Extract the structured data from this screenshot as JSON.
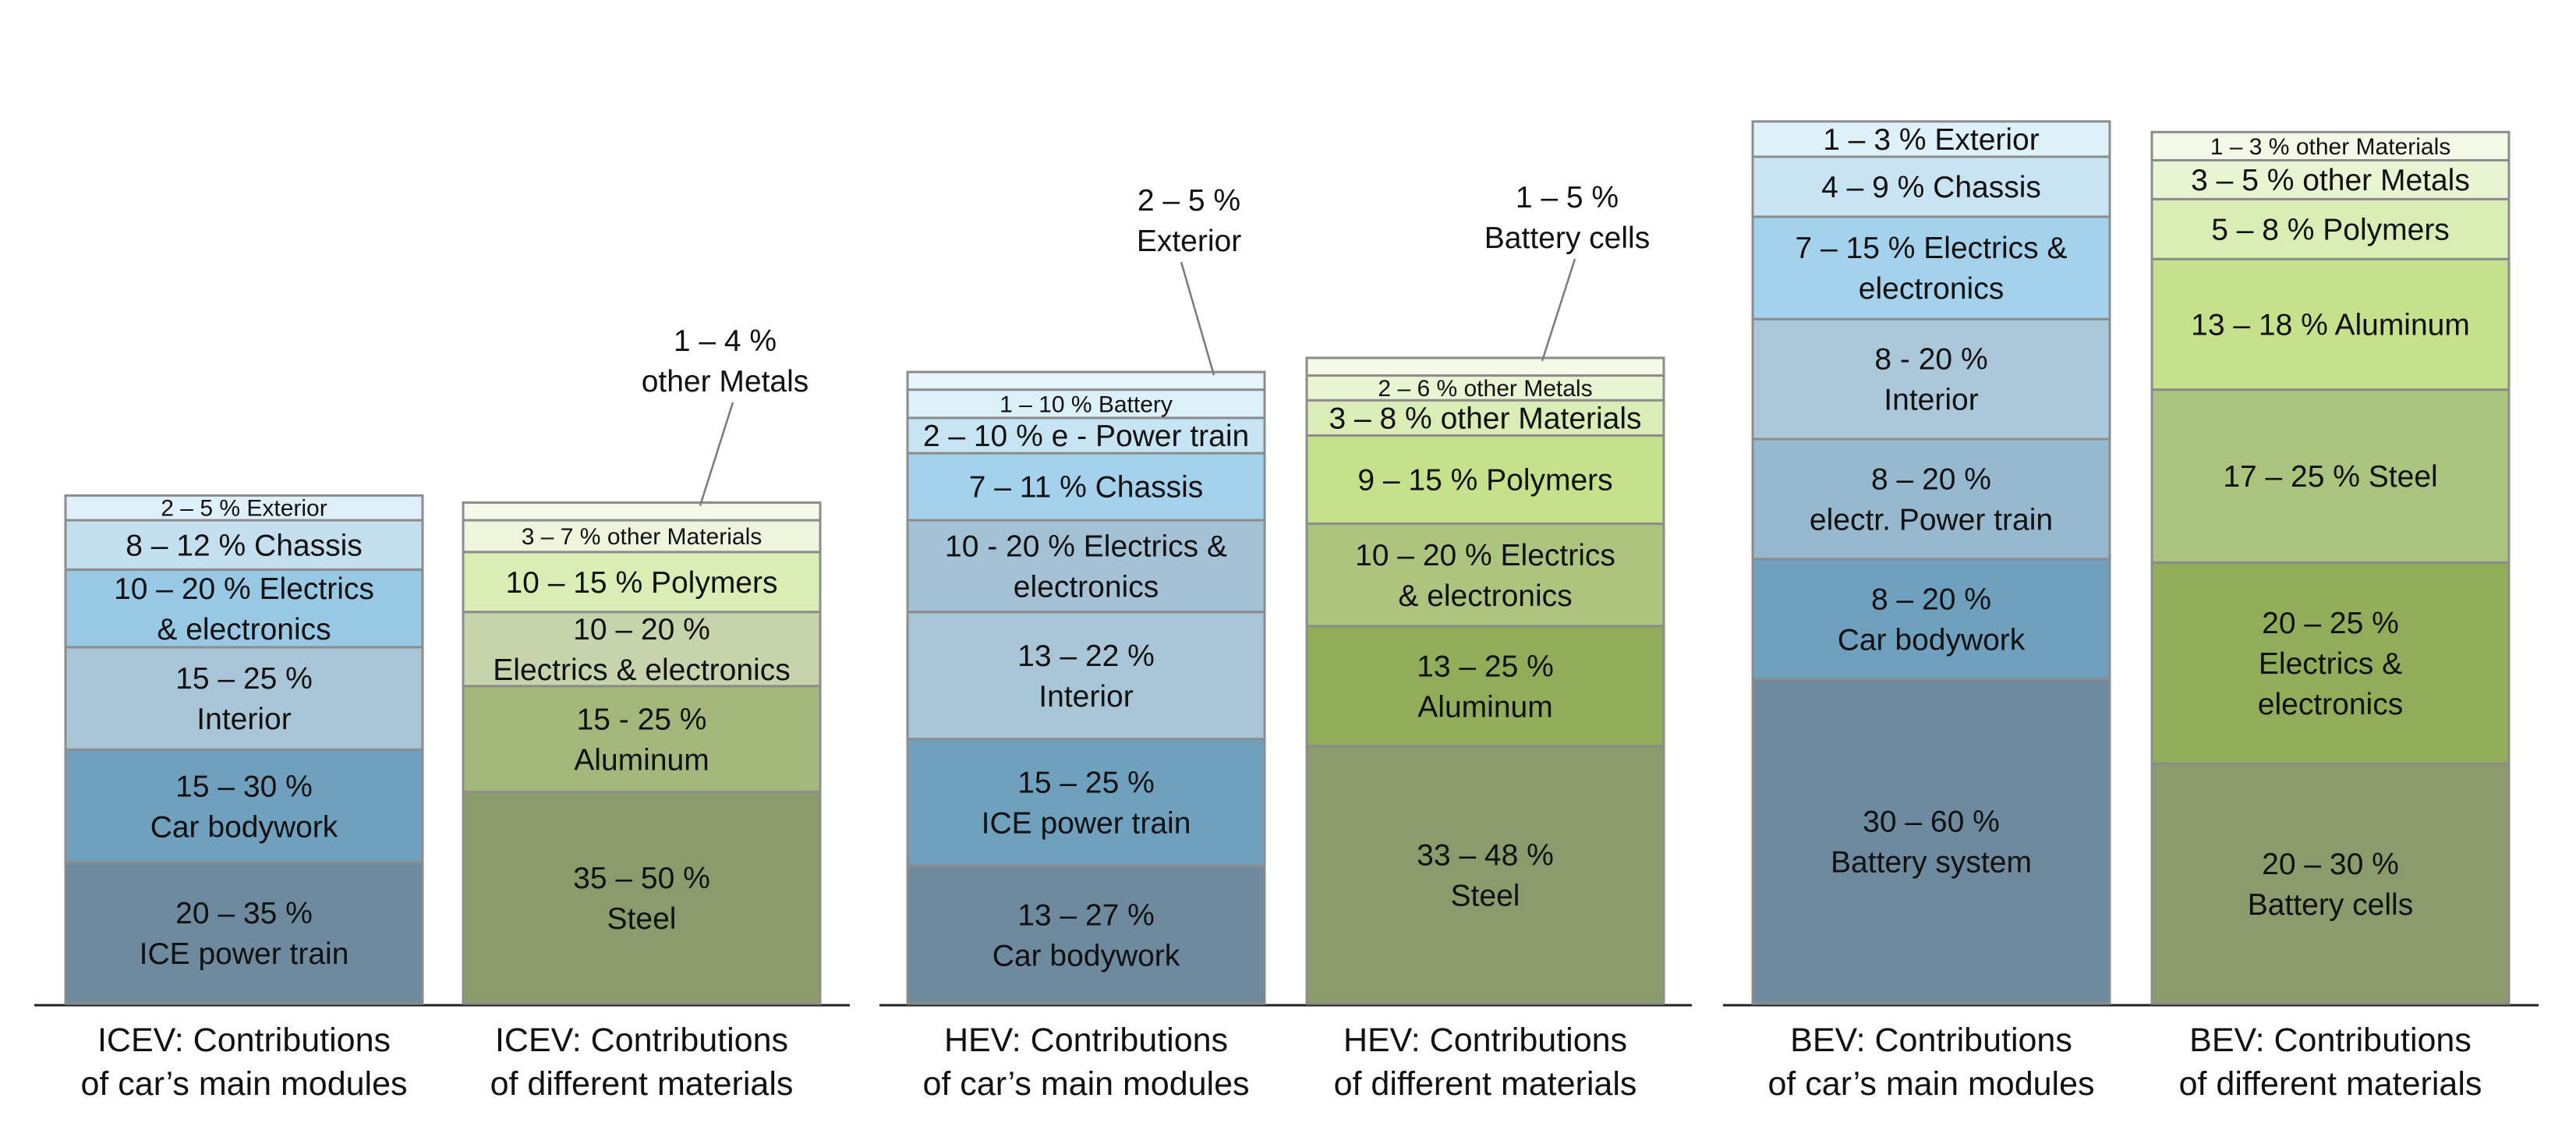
{
  "chart_data": [
    {
      "type": "stacked-bar",
      "title": "ICEV: Contributions of car’s main modules",
      "caption": [
        "ICEV: Contributions",
        "of car’s main modules"
      ],
      "segments": [
        {
          "label": [
            "20 – 35 %",
            "ICE power train"
          ],
          "units": 20,
          "color": "#6d8a9e"
        },
        {
          "label": [
            "15 – 30 %",
            "Car bodywork"
          ],
          "units": 16,
          "color": "#6fa0be"
        },
        {
          "label": [
            "15 – 25 %",
            "Interior"
          ],
          "units": 14.5,
          "color": "#a9c6d8"
        },
        {
          "label": [
            "10 – 20 % Electrics",
            "& electronics"
          ],
          "units": 11,
          "color": "#97c8e4"
        },
        {
          "label": [
            "8 – 12 % Chassis"
          ],
          "units": 7,
          "color": "#c3dff0"
        },
        {
          "label": [
            "2 – 5 % Exterior"
          ],
          "units": 3.5,
          "color": "#deeff9"
        }
      ]
    },
    {
      "type": "stacked-bar",
      "title": "ICEV: Contributions of different materials",
      "caption": [
        "ICEV: Contributions",
        "of different materials"
      ],
      "segments": [
        {
          "label": [
            "35 – 50 %",
            "Steel"
          ],
          "units": 30,
          "color": "#8b9b6b"
        },
        {
          "label": [
            "15 - 25 %",
            "Aluminum"
          ],
          "units": 15,
          "color": "#a5b87c"
        },
        {
          "label": [
            "10 – 20 %",
            "Electrics & electronics"
          ],
          "units": 10.5,
          "color": "#c7d4ab"
        },
        {
          "label": [
            "10 – 15 % Polymers"
          ],
          "units": 8.5,
          "color": "#d9edb4"
        },
        {
          "label": [
            "3 – 7 % other Materials"
          ],
          "units": 4.5,
          "color": "#eef5dd"
        },
        {
          "label": [],
          "units": 2.5,
          "color": "#f5f9e8"
        }
      ],
      "callout": {
        "text": [
          "1 – 4 %",
          "other Metals"
        ]
      }
    },
    {
      "type": "stacked-bar",
      "title": "HEV: Contributions of car’s main modules",
      "caption": [
        "HEV: Contributions",
        "of car’s main modules"
      ],
      "segments": [
        {
          "label": [
            "13 – 27 %",
            "Car bodywork"
          ],
          "units": 19.5,
          "color": "#6d8a9e"
        },
        {
          "label": [
            "15 – 25 %",
            "ICE power train"
          ],
          "units": 18,
          "color": "#6fa0be"
        },
        {
          "label": [
            "13 – 22 %",
            "Interior"
          ],
          "units": 18,
          "color": "#a9c6d8"
        },
        {
          "label": [
            "10 - 20 % Electrics &",
            "electronics"
          ],
          "units": 13,
          "color": "#a3c2d6"
        },
        {
          "label": [
            "7 – 11 % Chassis"
          ],
          "units": 9.5,
          "color": "#a4d2ec"
        },
        {
          "label": [
            "2 – 10 % e - Power train"
          ],
          "units": 5,
          "color": "#c7e4f4"
        },
        {
          "label": [
            "1 – 10 % Battery"
          ],
          "units": 4,
          "color": "#dcf0fa"
        },
        {
          "label": [],
          "units": 2.5,
          "color": "#e8f5fc"
        }
      ],
      "callout": {
        "text": [
          "2 – 5 %",
          "Exterior"
        ]
      }
    },
    {
      "type": "stacked-bar",
      "title": "HEV: Contributions of different materials",
      "caption": [
        "HEV: Contributions",
        "of different materials"
      ],
      "segments": [
        {
          "label": [
            "33 – 48 %",
            "Steel"
          ],
          "units": 36.5,
          "color": "#8b9b6b"
        },
        {
          "label": [
            "13 – 25 %",
            "Aluminum"
          ],
          "units": 17,
          "color": "#92ad5a"
        },
        {
          "label": [
            "10 – 20 % Electrics",
            "& electronics"
          ],
          "units": 14.5,
          "color": "#adc47e"
        },
        {
          "label": [
            "9 – 15 % Polymers"
          ],
          "units": 12.5,
          "color": "#c6e18b"
        },
        {
          "label": [
            "3 – 8 % other Materials"
          ],
          "units": 5,
          "color": "#dbedb6"
        },
        {
          "label": [
            "2 – 6 % other Metals"
          ],
          "units": 3.5,
          "color": "#e9f4d3"
        },
        {
          "label": [],
          "units": 2.5,
          "color": "#f3f9e7"
        }
      ],
      "callout": {
        "text": [
          "1 – 5 %",
          "Battery cells"
        ]
      }
    },
    {
      "type": "stacked-bar",
      "title": "BEV: Contributions of car’s main modules",
      "caption": [
        "BEV: Contributions",
        "of car’s main modules"
      ],
      "segments": [
        {
          "label": [
            "30 – 60 %",
            "Battery system"
          ],
          "units": 46,
          "color": "#6d8a9e"
        },
        {
          "label": [
            "8 – 20 %",
            "Car bodywork"
          ],
          "units": 17,
          "color": "#6fa0be"
        },
        {
          "label": [
            "8 – 20 %",
            "electr. Power train"
          ],
          "units": 17,
          "color": "#96b9cf"
        },
        {
          "label": [
            "8 - 20 %",
            "Interior"
          ],
          "units": 17,
          "color": "#abc8da"
        },
        {
          "label": [
            "7 – 15 % Electrics &",
            "electronics"
          ],
          "units": 14.5,
          "color": "#a4d2ec"
        },
        {
          "label": [
            "4 – 9 % Chassis"
          ],
          "units": 8.5,
          "color": "#c8e3f3"
        },
        {
          "label": [
            "1 – 3 % Exterior"
          ],
          "units": 5,
          "color": "#def0fa"
        }
      ]
    },
    {
      "type": "stacked-bar",
      "title": "BEV: Contributions of different materials",
      "caption": [
        "BEV: Contributions",
        "of different materials"
      ],
      "segments": [
        {
          "label": [
            "20 – 30 %",
            "Battery cells"
          ],
          "units": 34,
          "color": "#8b9b6b"
        },
        {
          "label": [
            "20 – 25 %",
            "Electrics &",
            "electronics"
          ],
          "units": 28.5,
          "color": "#92ad5a"
        },
        {
          "label": [
            "17 – 25 % Steel"
          ],
          "units": 24.5,
          "color": "#aac37e"
        },
        {
          "label": [
            "13 – 18 % Aluminum"
          ],
          "units": 18.5,
          "color": "#c6e18b"
        },
        {
          "label": [
            "5 – 8 % Polymers"
          ],
          "units": 8.5,
          "color": "#d9edb4"
        },
        {
          "label": [
            "3 – 5 % other Metals"
          ],
          "units": 5.5,
          "color": "#e9f4d3"
        },
        {
          "label": [
            "1 – 3 % other Materials"
          ],
          "units": 4,
          "color": "#f3f9e7"
        }
      ]
    }
  ]
}
